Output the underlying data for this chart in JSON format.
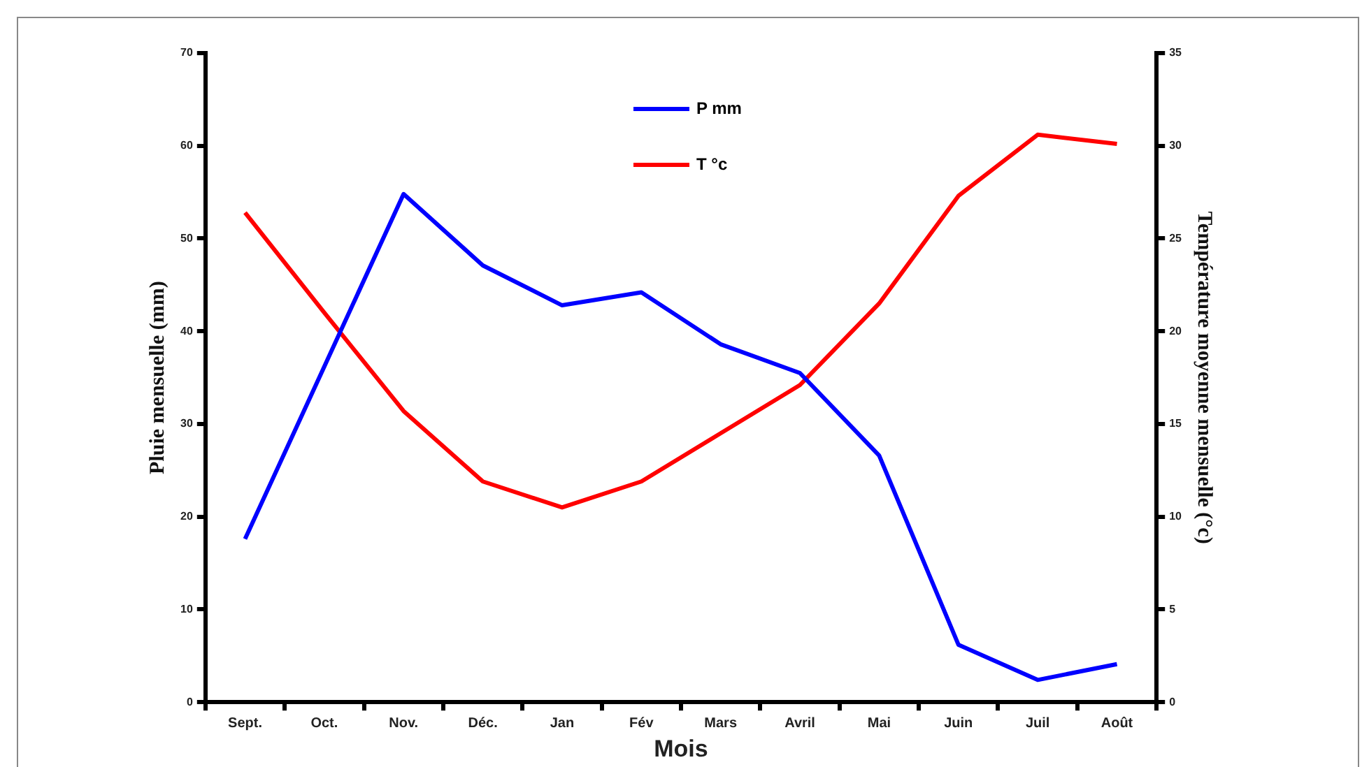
{
  "chart_data": {
    "type": "line",
    "xlabel": "Mois",
    "ylabel": "Pluie mensuelle (mm)",
    "y2label": "Température moyenne mensuelle (°c)",
    "categories": [
      "Sept.",
      "Oct.",
      "Nov.",
      "Déc.",
      "Jan",
      "Fév",
      "Mars",
      "Avril",
      "Mai",
      "Juin",
      "Juil",
      "Août"
    ],
    "series": [
      {
        "name": "P mm",
        "color": "#0000ff",
        "values": [
          17.6,
          36.2,
          54.8,
          47.1,
          42.8,
          44.2,
          38.6,
          35.5,
          26.6,
          6.2,
          2.4,
          4.1
        ]
      },
      {
        "name": "T °c",
        "color": "#ff0000",
        "axis": "y2",
        "values": [
          26.4,
          21.0,
          15.7,
          11.9,
          10.5,
          11.9,
          14.5,
          17.1,
          21.5,
          27.3,
          30.6,
          30.1
        ]
      }
    ],
    "ylim": [
      0,
      70
    ],
    "yticks": [
      0,
      10,
      20,
      30,
      40,
      50,
      60,
      70
    ],
    "y2lim": [
      0,
      35
    ],
    "y2ticks": [
      0,
      5,
      10,
      15,
      20,
      25,
      30,
      35
    ],
    "grid": false,
    "legend": "top",
    "marker": "none",
    "line_style": "solid"
  }
}
